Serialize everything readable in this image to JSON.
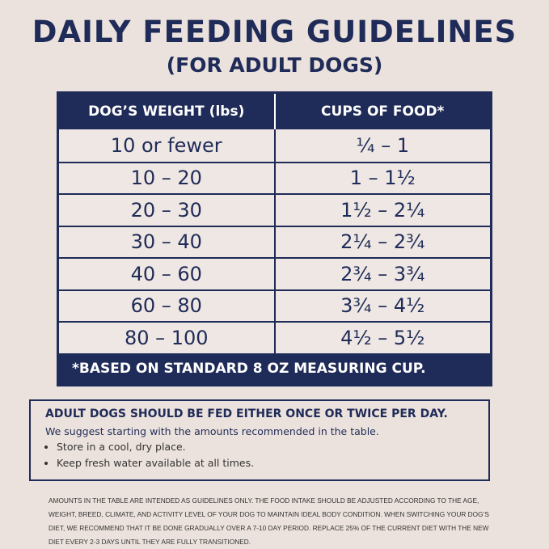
{
  "header": {
    "title": "DAILY FEEDING GUIDELINES",
    "subtitle": "(FOR ADULT DOGS)"
  },
  "table": {
    "columns": [
      "DOG’S WEIGHT (lbs)",
      "CUPS OF FOOD*"
    ],
    "rows": [
      [
        "10 or fewer",
        "¼ – 1"
      ],
      [
        "10 – 20",
        "1 – 1½"
      ],
      [
        "20 – 30",
        "1½ – 2¼"
      ],
      [
        "30 – 40",
        "2¼ – 2¾"
      ],
      [
        "40 – 60",
        "2¾ – 3¾"
      ],
      [
        "60 – 80",
        "3¾ – 4½"
      ],
      [
        "80 – 100",
        "4½ – 5½"
      ]
    ],
    "footnote": "*BASED ON STANDARD 8 OZ MEASURING CUP."
  },
  "note": {
    "heading": "ADULT DOGS SHOULD BE FED EITHER ONCE OR TWICE PER DAY.",
    "text": "We suggest starting with the amounts recommended in the table.",
    "bullets": [
      "Store in a cool, dry place.",
      "Keep fresh water available at all times."
    ]
  },
  "disclaimer": "AMOUNTS IN THE TABLE ARE INTENDED AS GUIDELINES ONLY. THE FOOD INTAKE SHOULD BE ADJUSTED ACCORDING TO THE AGE, WEIGHT, BREED, CLIMATE, AND ACTIVITY LEVEL OF YOUR DOG TO MAINTAIN IDEAL BODY CONDITION. WHEN SWITCHING YOUR DOG’S DIET, WE RECOMMEND THAT IT BE DONE GRADUALLY OVER A 7-10 DAY PERIOD. REPLACE 25% OF THE CURRENT DIET WITH THE NEW DIET EVERY 2-3 DAYS UNTIL THEY ARE FULLY TRANSITIONED."
}
